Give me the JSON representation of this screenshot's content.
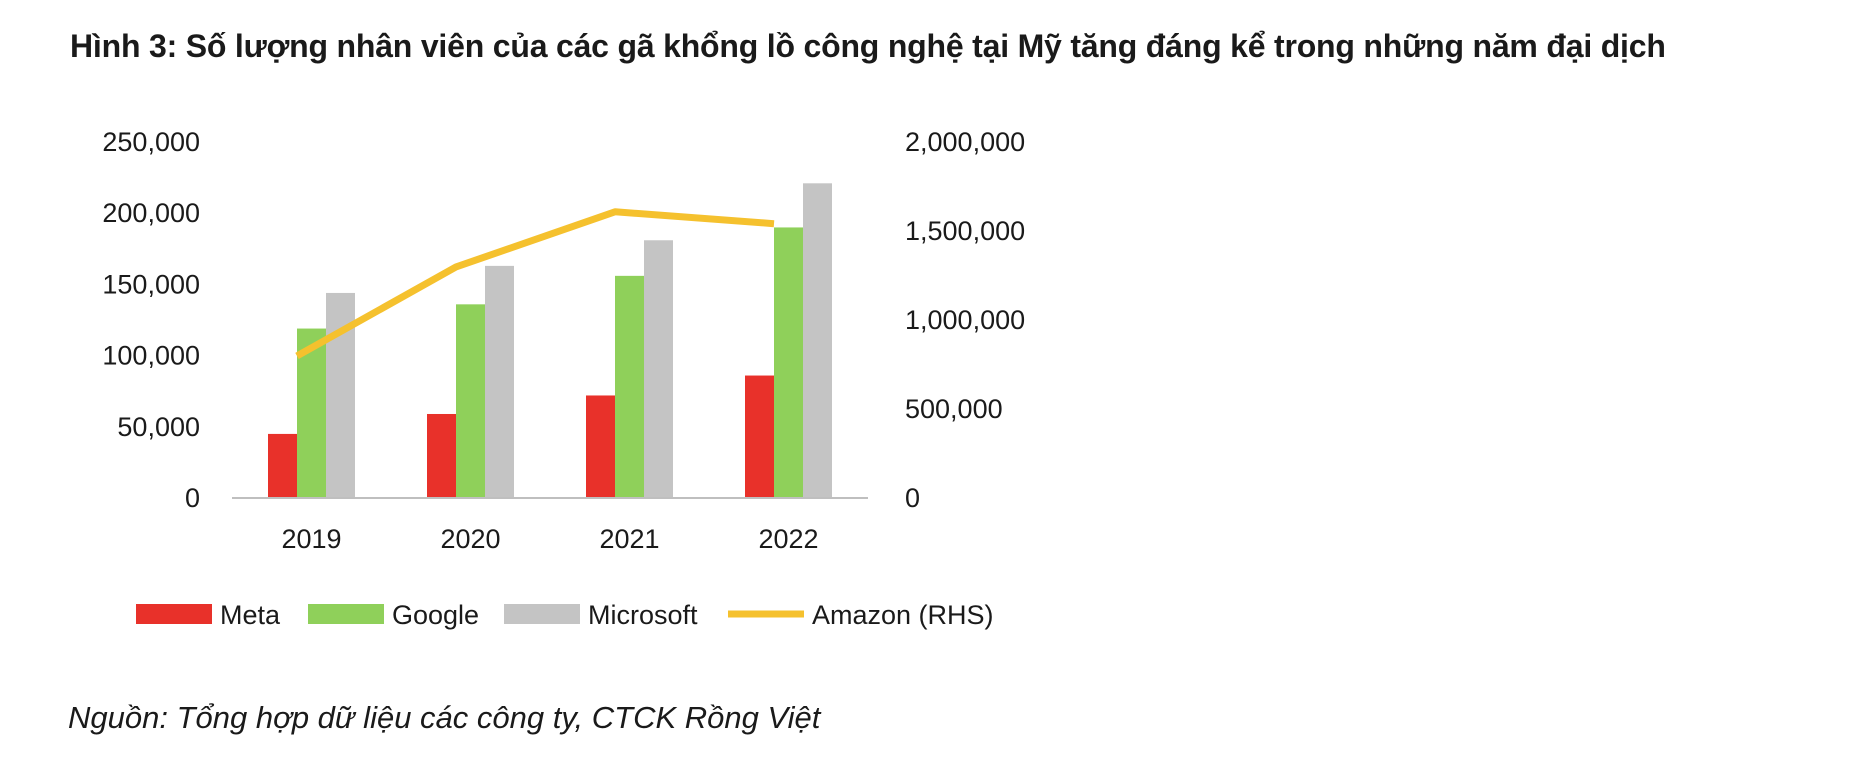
{
  "title": "Hình 3: Số lượng nhân viên của các gã khổng lồ công nghệ tại Mỹ tăng đáng kể trong những năm đại dịch",
  "source": "Nguồn: Tổng hợp dữ liệu các công ty, CTCK Rồng Việt",
  "chart_data": {
    "type": "bar",
    "title": "Hình 3: Số lượng nhân viên của các gã khổng lồ công nghệ tại Mỹ tăng đáng kể trong những năm đại dịch",
    "categories": [
      "2019",
      "2020",
      "2021",
      "2022"
    ],
    "series": [
      {
        "name": "Meta",
        "type": "bar",
        "axis": "left",
        "color": "#e8312a",
        "values": [
          45000,
          59000,
          72000,
          86000
        ]
      },
      {
        "name": "Google",
        "type": "bar",
        "axis": "left",
        "color": "#8fd05a",
        "values": [
          119000,
          136000,
          156000,
          190000
        ]
      },
      {
        "name": "Microsoft",
        "type": "bar",
        "axis": "left",
        "color": "#c4c4c4",
        "values": [
          144000,
          163000,
          181000,
          221000
        ]
      },
      {
        "name": "Amazon (RHS)",
        "type": "line",
        "axis": "right",
        "color": "#f5c12e",
        "values": [
          798000,
          1298000,
          1608000,
          1541000
        ]
      }
    ],
    "y_left": {
      "min": 0,
      "max": 250000,
      "ticks": [
        "0",
        "50,000",
        "100,000",
        "150,000",
        "200,000",
        "250,000"
      ]
    },
    "y_right": {
      "min": 0,
      "max": 2000000,
      "ticks": [
        "0",
        "500,000",
        "1,000,000",
        "1,500,000",
        "2,000,000"
      ]
    },
    "legend_position": "bottom",
    "grid": false
  }
}
